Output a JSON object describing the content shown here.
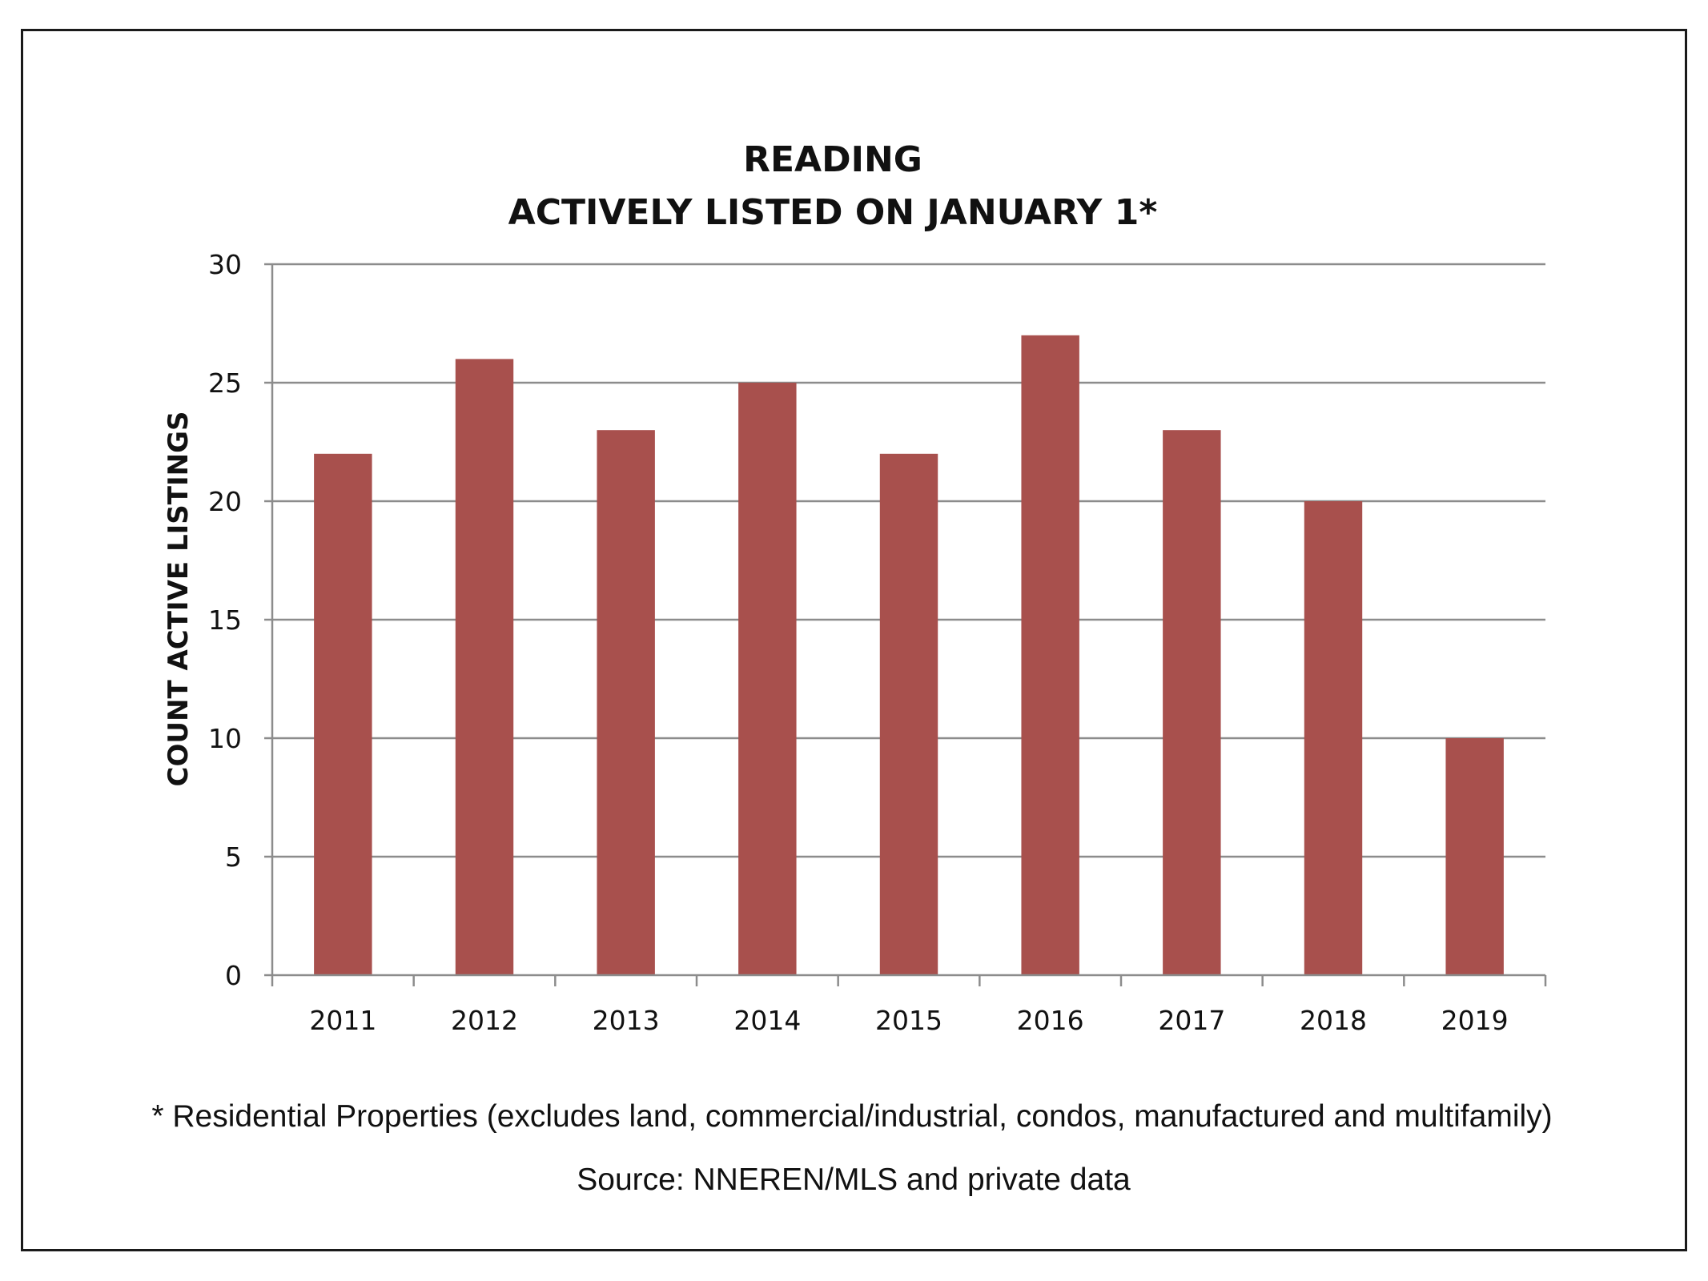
{
  "chart_data": {
    "type": "bar",
    "title_lines": [
      "READING",
      "ACTIVELY LISTED ON JANUARY 1*"
    ],
    "xlabel": "",
    "ylabel": "COUNT ACTIVE LISTINGS",
    "categories": [
      "2011",
      "2012",
      "2013",
      "2014",
      "2015",
      "2016",
      "2017",
      "2018",
      "2019"
    ],
    "values": [
      22,
      26,
      23,
      25,
      22,
      27,
      23,
      20,
      10
    ],
    "ylim": [
      0,
      30
    ],
    "yticks": [
      0,
      5,
      10,
      15,
      20,
      25,
      30
    ],
    "grid": true,
    "legend": "none",
    "bar_color": "#a8504d",
    "gridline_color": "#8c8c8c"
  },
  "footnote": "* Residential Properties (excludes land, commercial/industrial, condos, manufactured and multifamily)",
  "source": "Source: NNEREN/MLS and private data"
}
